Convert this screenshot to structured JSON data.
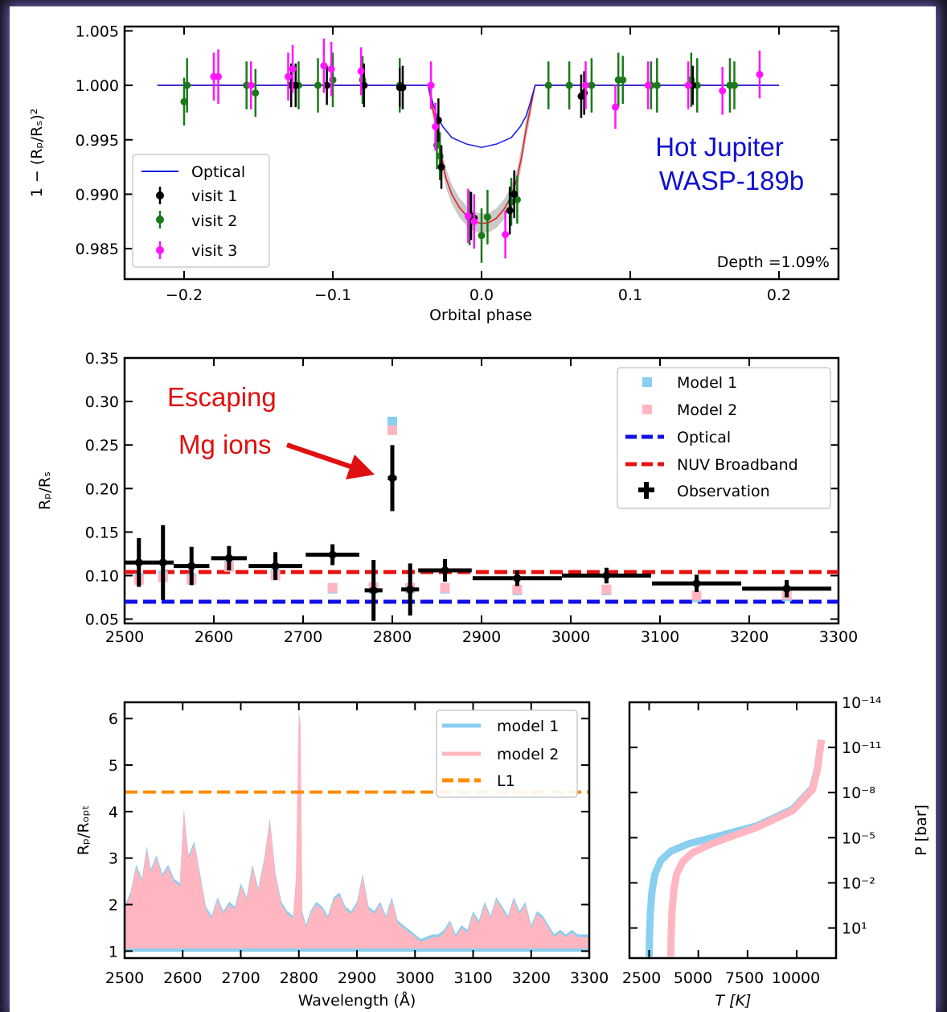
{
  "chart_data": [
    {
      "type": "scatter",
      "xlabel": "Orbital phase",
      "ylabel": "1 − (Rₚ/Rₛ)²",
      "xlim": [
        -0.24,
        0.24
      ],
      "ylim": [
        0.9822,
        1.0054
      ],
      "xticks": [
        "−0.2",
        "−0.1",
        "0.0",
        "0.1",
        "0.2"
      ],
      "xtick_values": [
        -0.2,
        -0.1,
        0.0,
        0.1,
        0.2
      ],
      "yticks": [
        "1.005",
        "1.000",
        "0.995",
        "0.990",
        "0.985"
      ],
      "ytick_values": [
        1.005,
        1.0,
        0.995,
        0.99,
        0.985
      ],
      "annotation_title": [
        "Hot Jupiter",
        "WASP-189b"
      ],
      "depth_label": "Depth =1.09%",
      "legend": [
        "Optical",
        "visit 1",
        "visit 2",
        "visit 3"
      ],
      "series": [
        {
          "name": "Optical",
          "kind": "line",
          "color": "#2020e6",
          "x": [
            -0.218,
            -0.036,
            -0.033,
            -0.03,
            -0.026,
            -0.02,
            -0.01,
            0.0,
            0.01,
            0.02,
            0.026,
            0.03,
            0.033,
            0.036,
            0.2
          ],
          "y": [
            1.0,
            1.0,
            0.9985,
            0.9972,
            0.9962,
            0.9952,
            0.9946,
            0.9943,
            0.9946,
            0.9952,
            0.9962,
            0.9972,
            0.9985,
            1.0,
            1.0
          ]
        },
        {
          "name": "NUV model",
          "kind": "line",
          "color": "#e62020",
          "x": [
            -0.218,
            -0.036,
            -0.033,
            -0.03,
            -0.027,
            -0.024,
            -0.02,
            -0.015,
            -0.01,
            -0.005,
            0.0,
            0.005,
            0.01,
            0.015,
            0.02,
            0.024,
            0.027,
            0.03,
            0.033,
            0.036,
            0.2
          ],
          "y": [
            1.0,
            1.0,
            0.998,
            0.996,
            0.9935,
            0.9915,
            0.99,
            0.9888,
            0.988,
            0.9875,
            0.9873,
            0.9874,
            0.9878,
            0.9886,
            0.9898,
            0.9915,
            0.9935,
            0.996,
            0.998,
            1.0,
            1.0
          ]
        },
        {
          "name": "visit 1",
          "kind": "errorbar",
          "color": "#000000",
          "x": [
            -0.128,
            -0.125,
            -0.104,
            -0.079,
            -0.055,
            -0.053,
            -0.029,
            -0.027,
            -0.007,
            -0.005,
            0.019,
            0.022,
            0.067,
            0.069,
            0.142
          ],
          "y": [
            1.0,
            1.0,
            1.0,
            1.0,
            0.9998,
            0.9998,
            0.9968,
            0.9925,
            0.988,
            0.9878,
            0.9885,
            0.99,
            0.999,
            0.9993,
            1.0
          ],
          "err": [
            0.002,
            0.002,
            0.0018,
            0.002,
            0.0018,
            0.002,
            0.002,
            0.002,
            0.0022,
            0.002,
            0.0022,
            0.0022,
            0.002,
            0.002,
            0.0018
          ]
        },
        {
          "name": "visit 2",
          "kind": "errorbar",
          "color": "#1a7a1a",
          "x": [
            -0.2,
            -0.198,
            -0.158,
            -0.152,
            -0.123,
            -0.11,
            -0.1,
            -0.08,
            -0.055,
            -0.03,
            -0.028,
            -0.008,
            0.0,
            0.004,
            0.02,
            0.024,
            0.045,
            0.059,
            0.074,
            0.092,
            0.095,
            0.114,
            0.118,
            0.141,
            0.145,
            0.167,
            0.17
          ],
          "y": [
            0.9985,
            1.0,
            1.0,
            0.9993,
            1.0,
            1.0,
            1.0005,
            1.0005,
            1.0,
            0.9945,
            0.9935,
            0.9878,
            0.9862,
            0.9879,
            0.9893,
            0.9895,
            1.0,
            1.0,
            1.0,
            1.0005,
            1.0005,
            1.0,
            1.0,
            1.0005,
            1.0,
            1.0,
            1.0
          ],
          "err": [
            0.0022,
            0.0025,
            0.0022,
            0.0022,
            0.0022,
            0.0025,
            0.0025,
            0.0022,
            0.0025,
            0.0022,
            0.0022,
            0.0025,
            0.0025,
            0.0025,
            0.0022,
            0.0022,
            0.0022,
            0.0022,
            0.0025,
            0.0025,
            0.0022,
            0.0022,
            0.0025,
            0.0025,
            0.0025,
            0.0025,
            0.0022
          ]
        },
        {
          "name": "visit 3",
          "kind": "errorbar",
          "color": "#ff14ff",
          "x": [
            -0.18,
            -0.177,
            -0.155,
            -0.13,
            -0.127,
            -0.106,
            -0.101,
            -0.081,
            -0.034,
            -0.031,
            -0.009,
            -0.005,
            0.016,
            0.07,
            0.09,
            0.112,
            0.139,
            0.162,
            0.187
          ],
          "y": [
            1.0008,
            1.0008,
            1.0,
            1.0008,
            1.0015,
            1.0018,
            1.0015,
            1.0013,
            1.0,
            0.9962,
            0.988,
            0.9875,
            0.9863,
            1.0,
            0.998,
            1.0,
            1.0,
            0.9995,
            1.001
          ],
          "err": [
            0.0022,
            0.0025,
            0.0022,
            0.0022,
            0.0022,
            0.0025,
            0.0025,
            0.0022,
            0.0022,
            0.0022,
            0.0025,
            0.0025,
            0.0022,
            0.0022,
            0.002,
            0.0022,
            0.0022,
            0.0022,
            0.0022
          ]
        }
      ]
    },
    {
      "type": "scatter",
      "xlabel": "",
      "ylabel": "Rₚ/Rₛ",
      "xlim": [
        2500,
        3300
      ],
      "ylim": [
        0.045,
        0.35
      ],
      "xticks": [
        "2500",
        "2600",
        "2700",
        "2800",
        "2900",
        "3000",
        "3100",
        "3200",
        "3300"
      ],
      "xtick_values": [
        2500,
        2600,
        2700,
        2800,
        2900,
        3000,
        3100,
        3200,
        3300
      ],
      "yticks": [
        "0.35",
        "0.30",
        "0.25",
        "0.20",
        "0.15",
        "0.10",
        "0.05"
      ],
      "ytick_values": [
        0.35,
        0.3,
        0.25,
        0.2,
        0.15,
        0.1,
        0.05
      ],
      "annotation": [
        "Escaping",
        "Mg ions"
      ],
      "legend": [
        "Model 1",
        "Model 2",
        "Optical",
        "NUV Broadband",
        "Observation"
      ],
      "optical_level": 0.07,
      "nuv_level": 0.104,
      "observation": {
        "x": [
          2516,
          2543,
          2575,
          2617,
          2669,
          2733,
          2779,
          2800,
          2820,
          2859,
          2940,
          3040,
          3141,
          3242
        ],
        "y": [
          0.115,
          0.115,
          0.111,
          0.12,
          0.111,
          0.124,
          0.083,
          0.212,
          0.084,
          0.106,
          0.097,
          0.1,
          0.091,
          0.085
        ],
        "xerr": [
          15,
          12,
          20,
          20,
          30,
          30,
          10,
          5,
          10,
          30,
          50,
          50,
          50,
          50
        ],
        "yerr": [
          0.028,
          0.043,
          0.022,
          0.014,
          0.016,
          0.012,
          0.035,
          0.038,
          0.03,
          0.013,
          0.009,
          0.009,
          0.01,
          0.01
        ]
      },
      "model1": {
        "x": [
          2516,
          2543,
          2575,
          2617,
          2669,
          2733,
          2779,
          2800,
          2820,
          2859,
          2940,
          3040,
          3141,
          3242
        ],
        "y": [
          0.097,
          0.1,
          0.097,
          0.111,
          0.102,
          0.085,
          0.085,
          0.277,
          0.085,
          0.085,
          0.083,
          0.083,
          0.075,
          0.076
        ]
      },
      "model2": {
        "x": [
          2516,
          2543,
          2575,
          2617,
          2669,
          2733,
          2779,
          2800,
          2820,
          2859,
          2940,
          3040,
          3141,
          3242
        ],
        "y": [
          0.095,
          0.098,
          0.095,
          0.11,
          0.1,
          0.086,
          0.087,
          0.267,
          0.086,
          0.086,
          0.084,
          0.084,
          0.077,
          0.078
        ]
      }
    },
    {
      "type": "area",
      "xlabel": "Wavelength (Å)",
      "ylabel": "Rₚ/Rₒₚₜ",
      "xlim": [
        2500,
        3300
      ],
      "ylim": [
        0.85,
        6.35
      ],
      "xticks": [
        "2500",
        "2600",
        "2700",
        "2800",
        "2900",
        "3000",
        "3100",
        "3200",
        "3300"
      ],
      "xtick_values": [
        2500,
        2600,
        2700,
        2800,
        2900,
        3000,
        3100,
        3200,
        3300
      ],
      "yticks": [
        "6",
        "5",
        "4",
        "3",
        "2",
        "1"
      ],
      "ytick_values": [
        6,
        5,
        4,
        3,
        2,
        1
      ],
      "legend": [
        "model 1",
        "model 2",
        "L1"
      ],
      "l1_level": 4.42,
      "model1_baseline": 1.02,
      "spectrum": {
        "x": [
          2500,
          2510,
          2520,
          2530,
          2538,
          2545,
          2555,
          2565,
          2575,
          2585,
          2595,
          2602,
          2610,
          2620,
          2630,
          2640,
          2650,
          2660,
          2670,
          2680,
          2690,
          2700,
          2710,
          2720,
          2730,
          2740,
          2750,
          2760,
          2770,
          2780,
          2790,
          2795,
          2800,
          2803,
          2806,
          2812,
          2820,
          2830,
          2840,
          2850,
          2860,
          2870,
          2880,
          2890,
          2900,
          2910,
          2920,
          2930,
          2940,
          2950,
          2960,
          2970,
          2980,
          2990,
          3000,
          3010,
          3020,
          3030,
          3040,
          3050,
          3060,
          3070,
          3080,
          3090,
          3100,
          3110,
          3120,
          3130,
          3140,
          3150,
          3160,
          3170,
          3180,
          3190,
          3200,
          3210,
          3220,
          3230,
          3240,
          3250,
          3260,
          3270,
          3280,
          3290,
          3300
        ],
        "y": [
          1.9,
          2.2,
          2.8,
          2.5,
          3.2,
          2.7,
          3.0,
          2.6,
          2.8,
          2.5,
          2.4,
          4.0,
          3.0,
          3.3,
          2.6,
          1.9,
          1.7,
          2.1,
          1.8,
          2.0,
          1.9,
          2.4,
          2.1,
          2.8,
          2.3,
          2.9,
          3.8,
          2.6,
          2.0,
          1.8,
          1.7,
          2.5,
          6.1,
          5.8,
          1.8,
          1.5,
          1.8,
          2.0,
          1.9,
          1.7,
          2.1,
          2.2,
          1.9,
          1.8,
          2.0,
          2.6,
          1.9,
          1.8,
          2.0,
          1.7,
          2.1,
          1.6,
          1.5,
          1.4,
          1.3,
          1.2,
          1.25,
          1.3,
          1.3,
          1.4,
          1.6,
          1.3,
          1.5,
          1.4,
          1.8,
          1.6,
          2.0,
          1.7,
          2.1,
          1.9,
          1.7,
          2.1,
          1.8,
          2.0,
          1.5,
          1.8,
          1.7,
          1.5,
          1.3,
          1.4,
          1.3,
          1.4,
          1.3,
          1.3,
          1.3
        ]
      }
    },
    {
      "type": "line",
      "xlabel": "T [K]",
      "ylabel": "P [bar]",
      "xlim": [
        1500,
        12000
      ],
      "ylim_log10": [
        3.0,
        -14.0
      ],
      "xticks": [
        "2500",
        "5000",
        "7500",
        "10000"
      ],
      "xtick_values": [
        2500,
        5000,
        7500,
        10000
      ],
      "yticks": [
        "10⁻¹⁴",
        "10⁻¹¹",
        "10⁻⁸",
        "10⁻⁵",
        "10⁻²",
        "10¹"
      ],
      "ytick_log10": [
        -14,
        -11,
        -8,
        -5,
        -2,
        1
      ],
      "series": [
        {
          "name": "model 1",
          "color": "#89cff0",
          "T": [
            2500,
            2520,
            2560,
            2650,
            2800,
            3100,
            3600,
            4500,
            6000,
            8000,
            9800,
            10800,
            11050,
            11200,
            11250
          ],
          "log10P": [
            2.9,
            1.5,
            0.0,
            -1.5,
            -2.6,
            -3.5,
            -4.1,
            -4.6,
            -5.1,
            -5.8,
            -6.9,
            -8.3,
            -9.6,
            -11.0,
            -11.5
          ]
        },
        {
          "name": "model 2",
          "color": "#ffb6c1",
          "T": [
            3600,
            3620,
            3660,
            3750,
            3900,
            4200,
            4700,
            5500,
            6500,
            8000,
            9800,
            10800,
            11050,
            11200,
            11250
          ],
          "log10P": [
            2.9,
            1.5,
            0.0,
            -1.5,
            -2.6,
            -3.4,
            -4.0,
            -4.5,
            -5.0,
            -5.7,
            -6.8,
            -8.2,
            -9.5,
            -11.0,
            -11.5
          ]
        }
      ]
    }
  ]
}
